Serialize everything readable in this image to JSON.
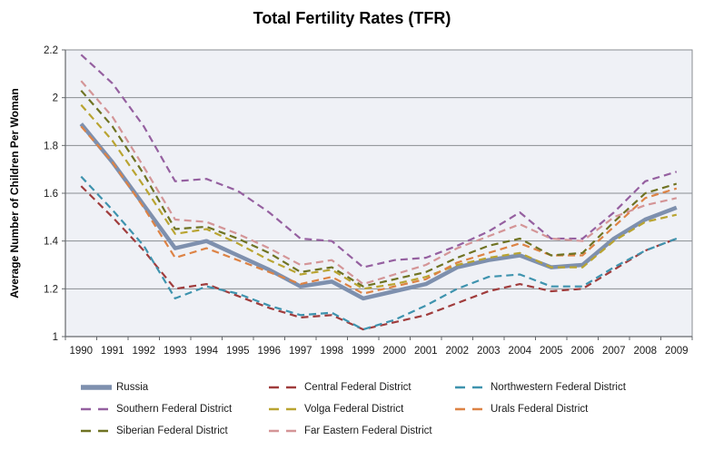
{
  "chart": {
    "title": "Total Fertility Rates (TFR)",
    "ylabel": "Average Number of Children Per Woman"
  },
  "chart_data": {
    "type": "line",
    "title": "Total Fertility Rates (TFR)",
    "xlabel": "",
    "ylabel": "Average Number of Children Per Woman",
    "x": [
      1990,
      1991,
      1992,
      1993,
      1994,
      1995,
      1996,
      1997,
      1998,
      1999,
      2000,
      2001,
      2002,
      2003,
      2004,
      2005,
      2006,
      2007,
      2008,
      2009
    ],
    "ylim": [
      1.0,
      2.2
    ],
    "ytick_step": 0.2,
    "yticks": [
      "1",
      "1.2",
      "1.4",
      "1.6",
      "1.8",
      "2",
      "2.2"
    ],
    "grid": "horizontal",
    "legend_position": "bottom",
    "plot_bg": "#EFF1F6",
    "grid_color": "#8A8D92",
    "axis_color": "#65686C",
    "series": [
      {
        "name": "Russia",
        "color": "#7E90AE",
        "style": "solid",
        "width": 4.5,
        "values": [
          1.89,
          1.73,
          1.55,
          1.37,
          1.4,
          1.34,
          1.28,
          1.21,
          1.23,
          1.16,
          1.19,
          1.22,
          1.29,
          1.32,
          1.34,
          1.29,
          1.3,
          1.41,
          1.49,
          1.54
        ]
      },
      {
        "name": "Central Federal District",
        "color": "#A03C3C",
        "style": "dashed",
        "width": 2.2,
        "values": [
          1.63,
          1.5,
          1.36,
          1.2,
          1.22,
          1.17,
          1.12,
          1.08,
          1.09,
          1.03,
          1.06,
          1.09,
          1.14,
          1.19,
          1.22,
          1.19,
          1.2,
          1.28,
          1.36,
          1.41
        ]
      },
      {
        "name": "Northwestern Federal District",
        "color": "#3E93AE",
        "style": "dashed",
        "width": 2.2,
        "values": [
          1.67,
          1.53,
          1.38,
          1.16,
          1.21,
          1.18,
          1.13,
          1.09,
          1.1,
          1.03,
          1.07,
          1.13,
          1.2,
          1.25,
          1.26,
          1.21,
          1.21,
          1.29,
          1.36,
          1.41
        ]
      },
      {
        "name": "Southern Federal District",
        "color": "#9560A0",
        "style": "dashed",
        "width": 2.2,
        "values": [
          2.18,
          2.06,
          1.88,
          1.65,
          1.66,
          1.61,
          1.52,
          1.41,
          1.4,
          1.29,
          1.32,
          1.33,
          1.38,
          1.44,
          1.52,
          1.41,
          1.41,
          1.52,
          1.65,
          1.69
        ]
      },
      {
        "name": "Volga Federal District",
        "color": "#B9A431",
        "style": "dashed",
        "width": 2.2,
        "values": [
          1.97,
          1.82,
          1.63,
          1.43,
          1.45,
          1.39,
          1.32,
          1.26,
          1.28,
          1.2,
          1.22,
          1.25,
          1.3,
          1.33,
          1.35,
          1.29,
          1.29,
          1.4,
          1.48,
          1.51
        ]
      },
      {
        "name": "Urals Federal District",
        "color": "#DD8345",
        "style": "dashed",
        "width": 2.2,
        "values": [
          1.88,
          1.73,
          1.54,
          1.33,
          1.37,
          1.32,
          1.27,
          1.22,
          1.25,
          1.18,
          1.21,
          1.24,
          1.31,
          1.35,
          1.39,
          1.34,
          1.34,
          1.46,
          1.58,
          1.62
        ]
      },
      {
        "name": "Siberian Federal District",
        "color": "#6F7323",
        "style": "dashed",
        "width": 2.2,
        "values": [
          2.03,
          1.88,
          1.68,
          1.45,
          1.46,
          1.41,
          1.35,
          1.27,
          1.29,
          1.21,
          1.24,
          1.27,
          1.33,
          1.38,
          1.41,
          1.34,
          1.35,
          1.48,
          1.6,
          1.64
        ]
      },
      {
        "name": "Far Eastern Federal District",
        "color": "#D49597",
        "style": "dashed",
        "width": 2.2,
        "values": [
          2.07,
          1.92,
          1.71,
          1.49,
          1.48,
          1.43,
          1.37,
          1.3,
          1.32,
          1.22,
          1.26,
          1.3,
          1.37,
          1.42,
          1.47,
          1.41,
          1.4,
          1.5,
          1.55,
          1.58
        ]
      }
    ],
    "legend_order": [
      0,
      1,
      2,
      3,
      4,
      5,
      6,
      7
    ]
  }
}
